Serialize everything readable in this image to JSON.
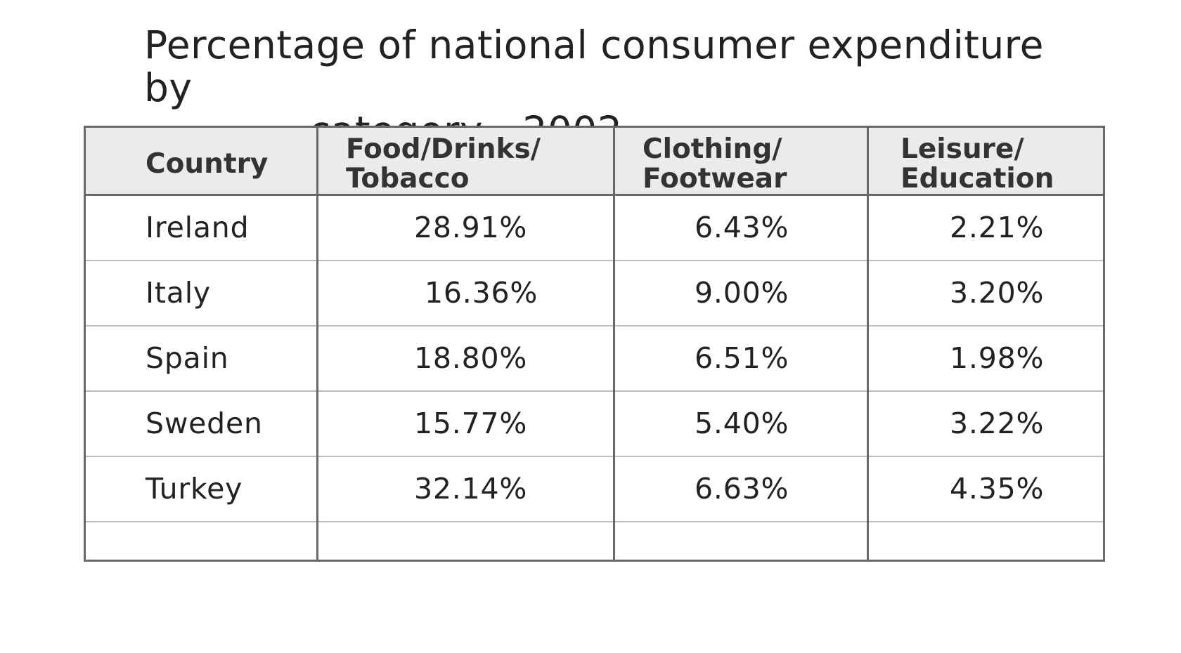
{
  "chart_data": {
    "type": "table",
    "title": "Percentage of national consumer expenditure by category - 2002",
    "title_lines": [
      "Percentage of national consumer expenditure by",
      "category - 2002"
    ],
    "columns": [
      {
        "key": "country",
        "lines": [
          "Country"
        ]
      },
      {
        "key": "food",
        "lines": [
          "Food/Drinks/",
          "Tobacco"
        ]
      },
      {
        "key": "clothing",
        "lines": [
          "Clothing/",
          "Footwear"
        ]
      },
      {
        "key": "leisure",
        "lines": [
          "Leisure/",
          "Education"
        ]
      }
    ],
    "rows": [
      {
        "country": "Ireland",
        "food": "28.91%",
        "clothing": "6.43%",
        "leisure": "2.21%"
      },
      {
        "country": "Italy",
        "food": "16.36%",
        "clothing": "9.00%",
        "leisure": "3.20%"
      },
      {
        "country": "Spain",
        "food": "18.80%",
        "clothing": "6.51%",
        "leisure": "1.98%"
      },
      {
        "country": "Sweden",
        "food": "15.77%",
        "clothing": "5.40%",
        "leisure": "3.22%"
      },
      {
        "country": "Turkey",
        "food": "32.14%",
        "clothing": "6.63%",
        "leisure": "4.35%"
      }
    ],
    "colors": {
      "header_background": "#ebebeb",
      "outer_border": "#686868",
      "row_divider": "#bdbdbd",
      "text": "#222222"
    }
  }
}
